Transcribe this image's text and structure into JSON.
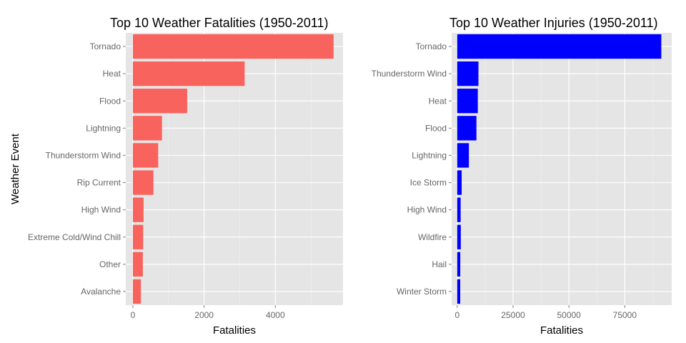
{
  "chart_data": [
    {
      "type": "bar",
      "orientation": "horizontal",
      "title": "Top 10 Weather Fatalities (1950-2011)",
      "xlabel": "Fatalities",
      "ylabel": "Weather Event",
      "categories": [
        "Tornado",
        "Heat",
        "Flood",
        "Lightning",
        "Thunderstorm Wind",
        "Rip Current",
        "High Wind",
        "Extreme Cold/Wind Chill",
        "Other",
        "Avalanche"
      ],
      "values": [
        5636,
        3138,
        1525,
        817,
        710,
        577,
        300,
        290,
        280,
        225
      ],
      "xlim": [
        -200,
        5900
      ],
      "xticks": [
        0,
        2000,
        4000
      ],
      "xtick_labels": [
        "0",
        "2000",
        "4000"
      ],
      "minor_xticks": [
        1000,
        3000,
        5000
      ],
      "bar_color": "#f8635d",
      "grid": true
    },
    {
      "type": "bar",
      "orientation": "horizontal",
      "title": "Top 10 Weather Injuries (1950-2011)",
      "xlabel": "Fatalities",
      "ylabel": "",
      "categories": [
        "Tornado",
        "Thunderstorm Wind",
        "Heat",
        "Flood",
        "Lightning",
        "Ice Storm",
        "High Wind",
        "Wildfire",
        "Hail",
        "Winter Storm"
      ],
      "values": [
        91346,
        9500,
        9224,
        8604,
        5230,
        1990,
        1530,
        1606,
        1371,
        1352
      ],
      "xlim": [
        -2500,
        96000
      ],
      "xticks": [
        0,
        25000,
        50000,
        75000
      ],
      "xtick_labels": [
        "0",
        "25000",
        "50000",
        "75000"
      ],
      "minor_xticks": [
        12500,
        37500,
        62500,
        87500
      ],
      "bar_color": "#0000ff",
      "grid": true
    }
  ]
}
